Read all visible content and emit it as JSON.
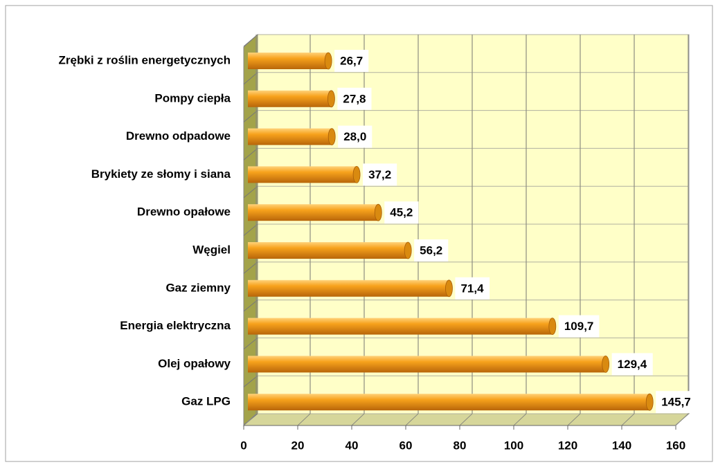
{
  "chart_data": {
    "type": "bar",
    "orientation": "horizontal",
    "categories": [
      "Zrębki z roślin energetycznych",
      "Pompy ciepła",
      "Drewno odpadowe",
      "Brykiety ze słomy i siana",
      "Drewno opałowe",
      "Węgiel",
      "Gaz ziemny",
      "Energia elektryczna",
      "Olej  opałowy",
      "Gaz LPG"
    ],
    "values": [
      26.7,
      27.8,
      28.0,
      37.2,
      45.2,
      56.2,
      71.4,
      109.7,
      129.4,
      145.7
    ],
    "value_labels": [
      "26,7",
      "27,8",
      "28,0",
      "37,2",
      "45,2",
      "56,2",
      "71,4",
      "109,7",
      "129,4",
      "145,7"
    ],
    "color": "#f39a12",
    "xlim": [
      0,
      160
    ],
    "xticks": [
      0,
      20,
      40,
      60,
      80,
      100,
      120,
      140,
      160
    ],
    "grid": true
  }
}
